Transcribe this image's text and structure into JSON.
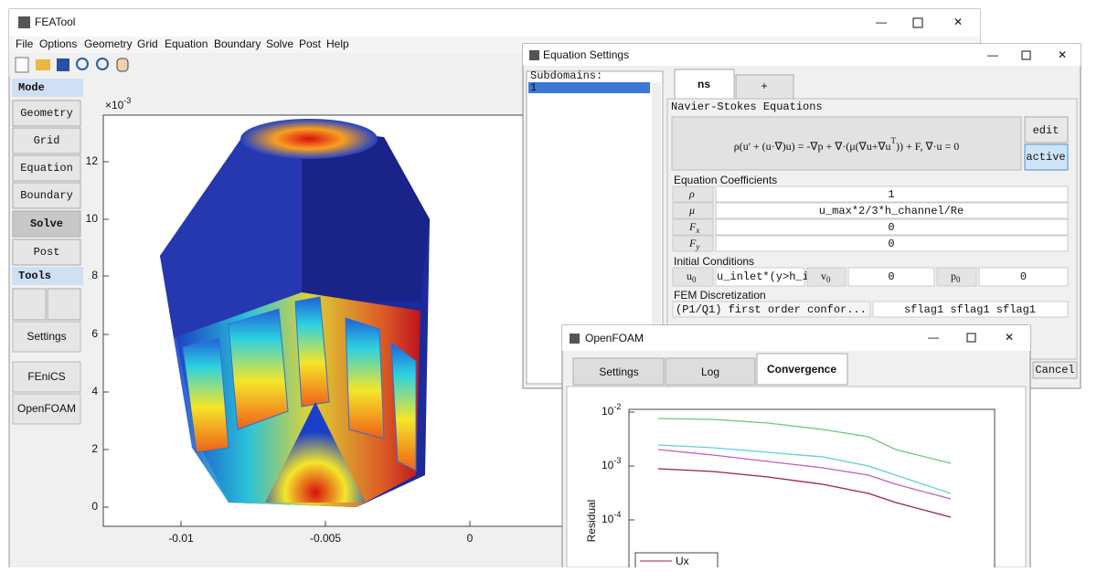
{
  "main_window": {
    "title": "FEATool",
    "menu": [
      "File",
      "Options",
      "Geometry",
      "Grid",
      "Equation",
      "Boundary",
      "Solve",
      "Post",
      "Help"
    ],
    "mode_header": "Mode",
    "mode_buttons": [
      "Geometry",
      "Grid",
      "Equation",
      "Boundary",
      "Solve",
      "Post"
    ],
    "tools_header": "Tools",
    "tool_buttons": [
      "Settings",
      "FEniCS",
      "OpenFOAM"
    ],
    "plot": {
      "y_scale_base": "×10",
      "y_scale_exp": "-3",
      "yticks": [
        "12",
        "10",
        "8",
        "6",
        "4",
        "2",
        "0"
      ],
      "xticks": [
        "-0.01",
        "-0.005",
        "0"
      ]
    }
  },
  "equation_window": {
    "title": "Equation Settings",
    "subdomains_label": "Subdomains:",
    "subdomains": [
      "1"
    ],
    "tabs": [
      "ns",
      "+"
    ],
    "equation_group": "Navier-Stokes Equations",
    "equation": {
      "before": "ρ(u' + (u·∇)u) = -∇p + ∇·(μ(∇u+∇u",
      "sup": "T",
      "after": ")) + F, ∇·u = 0"
    },
    "edit_button": "edit",
    "active_button": "active",
    "coefficients_label": "Equation Coefficients",
    "coefficients": [
      {
        "symbol": "ρ",
        "sub": "",
        "value": "1"
      },
      {
        "symbol": "μ",
        "sub": "",
        "value": "u_max*2/3*h_channel/Re"
      },
      {
        "symbol": "F",
        "sub": "x",
        "value": "0"
      },
      {
        "symbol": "F",
        "sub": "y",
        "value": "0"
      }
    ],
    "initial_label": "Initial Conditions",
    "initial": [
      {
        "symbol": "u",
        "sub": "0",
        "value": "u_inlet*(y>h_in"
      },
      {
        "symbol": "v",
        "sub": "0",
        "value": "0"
      },
      {
        "symbol": "p",
        "sub": "0",
        "value": "0"
      }
    ],
    "fem_label": "FEM Discretization",
    "fem_choice": "(P1/Q1) first order confor...",
    "fem_flags": "sflag1 sflag1 sflag1",
    "cancel": "Cancel"
  },
  "openfoam_window": {
    "title": "OpenFOAM",
    "tabs": [
      "Settings",
      "Log",
      "Convergence"
    ],
    "plot": {
      "yticks": [
        {
          "base": "10",
          "exp": "-2"
        },
        {
          "base": "10",
          "exp": "-3"
        },
        {
          "base": "10",
          "exp": "-4"
        }
      ],
      "ylabel": "Residual",
      "legend": [
        "Ux"
      ]
    }
  }
}
